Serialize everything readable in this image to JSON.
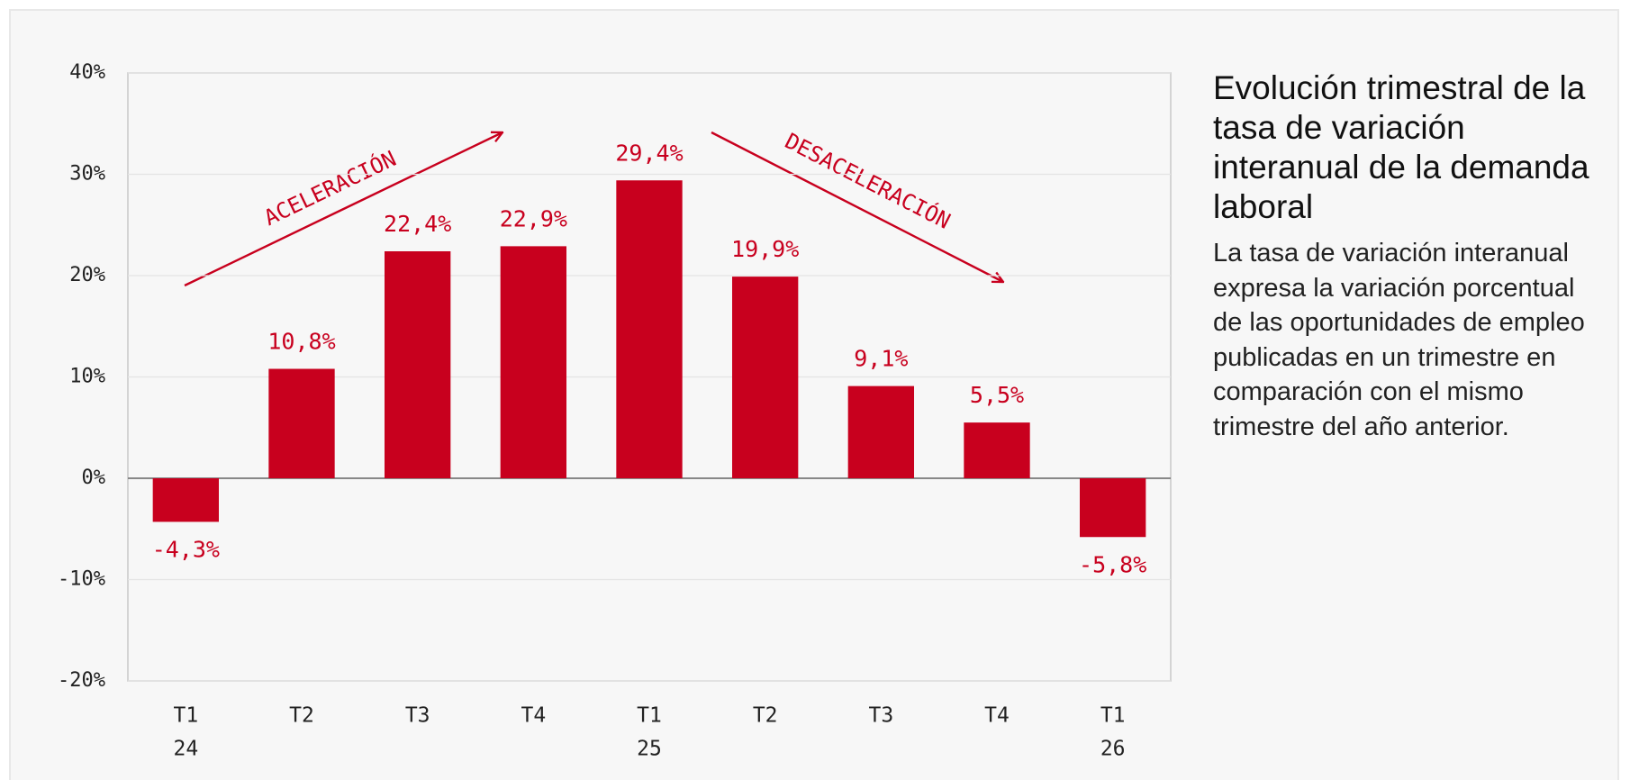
{
  "chart_data": {
    "type": "bar",
    "title": "Evolución trimestral de la tasa de variación interanual de la demanda laboral",
    "subtitle": "La tasa de variación interanual expresa la variación porcentual de las oportunidades de empleo publicadas en un trimestre en comparación con el mismo trimestre del año anterior.",
    "categories": [
      "T1",
      "T2",
      "T3",
      "T4",
      "T1",
      "T2",
      "T3",
      "T4",
      "T1"
    ],
    "years": [
      "24",
      null,
      null,
      null,
      "25",
      null,
      null,
      null,
      "26"
    ],
    "values": [
      -4.3,
      10.8,
      22.4,
      22.9,
      29.4,
      19.9,
      9.1,
      5.5,
      -5.8
    ],
    "value_labels": [
      "-4,3%",
      "10,8%",
      "22,4%",
      "22,9%",
      "29,4%",
      "19,9%",
      "9,1%",
      "5,5%",
      "-5,8%"
    ],
    "color": "#c8001e",
    "ylim": [
      -20,
      40
    ],
    "yticks": [
      {
        "value": -20,
        "label": "-20%"
      },
      {
        "value": -10,
        "label": "-10%"
      },
      {
        "value": 0,
        "label": "0%"
      },
      {
        "value": 10,
        "label": "10%"
      },
      {
        "value": 20,
        "label": "20%"
      },
      {
        "value": 30,
        "label": "30%"
      },
      {
        "value": 40,
        "label": "40%"
      }
    ],
    "grid": true,
    "annotations": [
      "ACELERACIÓN",
      "DESACELERACIÓN"
    ]
  }
}
